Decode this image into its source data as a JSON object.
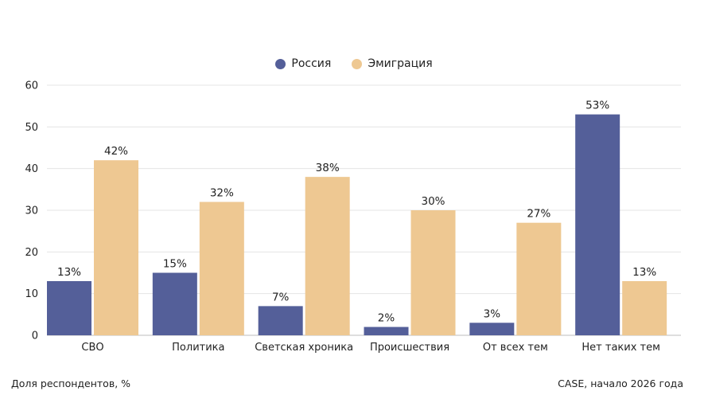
{
  "chart_data": {
    "type": "bar",
    "categories": [
      "СВО",
      "Политика",
      "Светская хроника",
      "Происшествия",
      "От всех тем",
      "Нет таких тем"
    ],
    "series": [
      {
        "name": "Россия",
        "values": [
          13,
          15,
          7,
          2,
          3,
          53
        ],
        "color": "#545f99"
      },
      {
        "name": "Эмиграция",
        "values": [
          42,
          32,
          38,
          30,
          27,
          13
        ],
        "color": "#eec892"
      }
    ],
    "value_suffix": "%",
    "ylim": [
      0,
      60
    ],
    "yticks": [
      0,
      10,
      20,
      30,
      40,
      50,
      60
    ],
    "grid": true,
    "legend_position": "top-center"
  },
  "footer": {
    "left": "Доля респондентов, %",
    "right": "CASE, начало 2026 года"
  }
}
